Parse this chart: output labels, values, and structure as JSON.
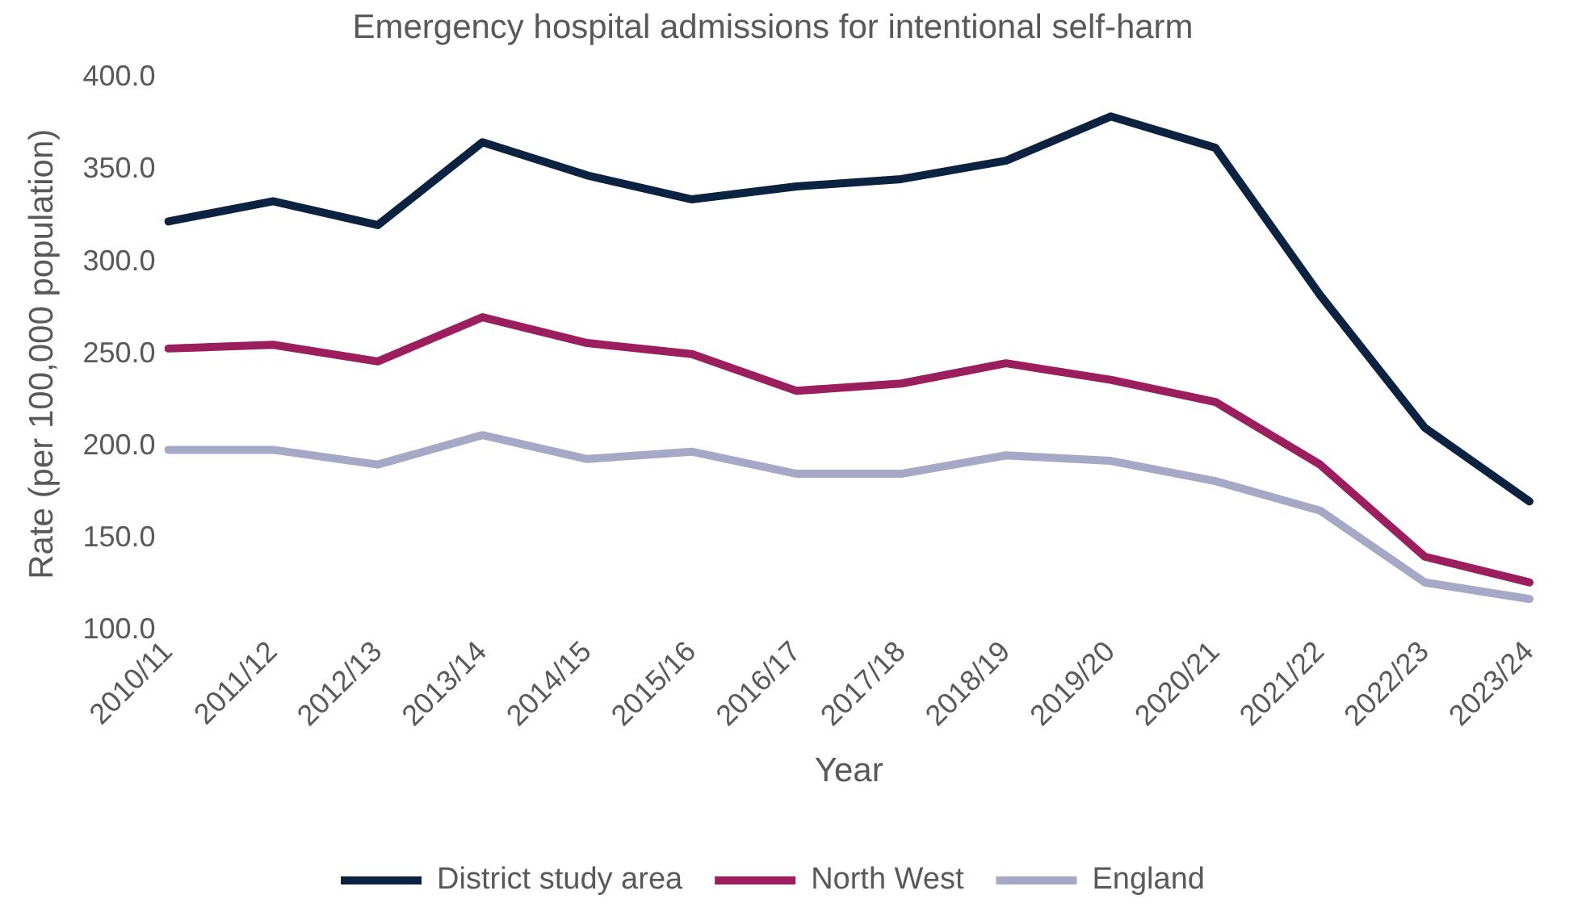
{
  "chart_data": {
    "type": "line",
    "title": "Emergency hospital admissions for intentional self-harm",
    "xlabel": "Year",
    "ylabel": "Rate (per 100,000 population)",
    "categories": [
      "2010/11",
      "2011/12",
      "2012/13",
      "2013/14",
      "2014/15",
      "2015/16",
      "2016/17",
      "2017/18",
      "2018/19",
      "2019/20",
      "2020/21",
      "2021/22",
      "2022/23",
      "2023/24"
    ],
    "series": [
      {
        "name": "District study area",
        "color": "#0b2341",
        "values": [
          322,
          333,
          320,
          365,
          347,
          334,
          341,
          345,
          355,
          379,
          362,
          282,
          210,
          170
        ]
      },
      {
        "name": "North West",
        "color": "#9b1f5e",
        "values": [
          253,
          255,
          246,
          270,
          256,
          250,
          230,
          234,
          245,
          236,
          224,
          190,
          140,
          126
        ]
      },
      {
        "name": "England",
        "color": "#a5a9c6",
        "values": [
          198,
          198,
          190,
          206,
          193,
          197,
          185,
          185,
          195,
          192,
          181,
          165,
          126,
          117
        ]
      }
    ],
    "ylim": [
      100,
      400
    ],
    "yticks": [
      {
        "value": 100,
        "label": "100.0"
      },
      {
        "value": 150,
        "label": "150.0"
      },
      {
        "value": 200,
        "label": "200.0"
      },
      {
        "value": 250,
        "label": "250.0"
      },
      {
        "value": 300,
        "label": "300.0"
      },
      {
        "value": 350,
        "label": "350.0"
      },
      {
        "value": 400,
        "label": "400.0"
      }
    ],
    "grid": false,
    "legend": "bottom",
    "marker": "none",
    "line_style": "solid"
  }
}
